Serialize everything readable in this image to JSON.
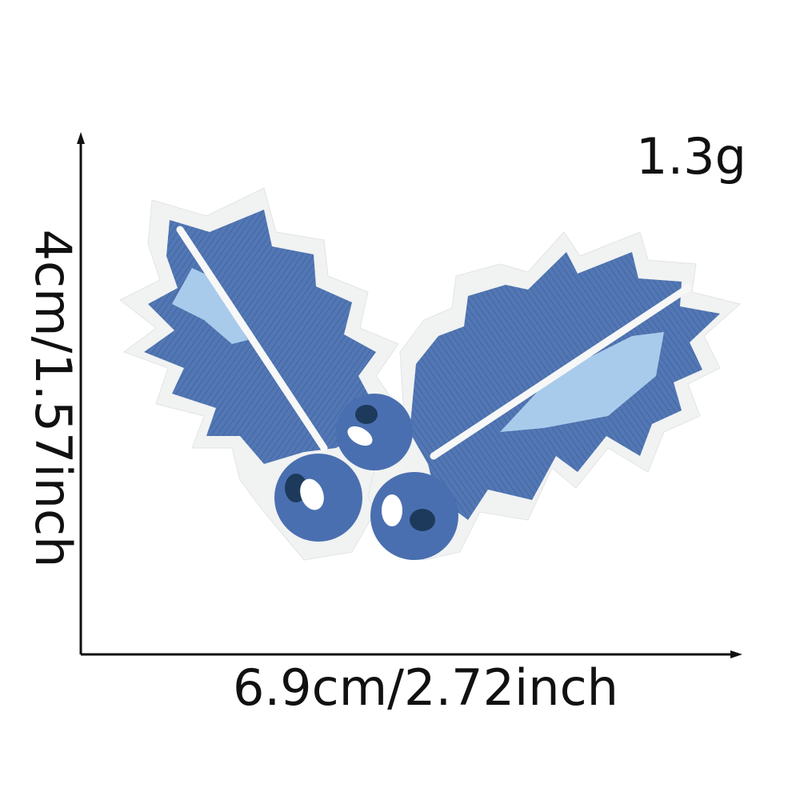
{
  "product": {
    "weight": "1.3g",
    "height_label": "4cm/1.57inch",
    "width_label": "6.9cm/2.72inch",
    "subject": "holly-leaves-embroidered-patch-icon"
  },
  "colors": {
    "leaf": "#5277b4",
    "leaf_dark": "#3f629d",
    "leaf_highlight": "#a9cbeb",
    "vein": "#f7f7f7",
    "berry": "#4a6fb0",
    "berry_dark": "#1d3a5c",
    "felt_border": "#f1f2f2",
    "axis": "#111111"
  }
}
